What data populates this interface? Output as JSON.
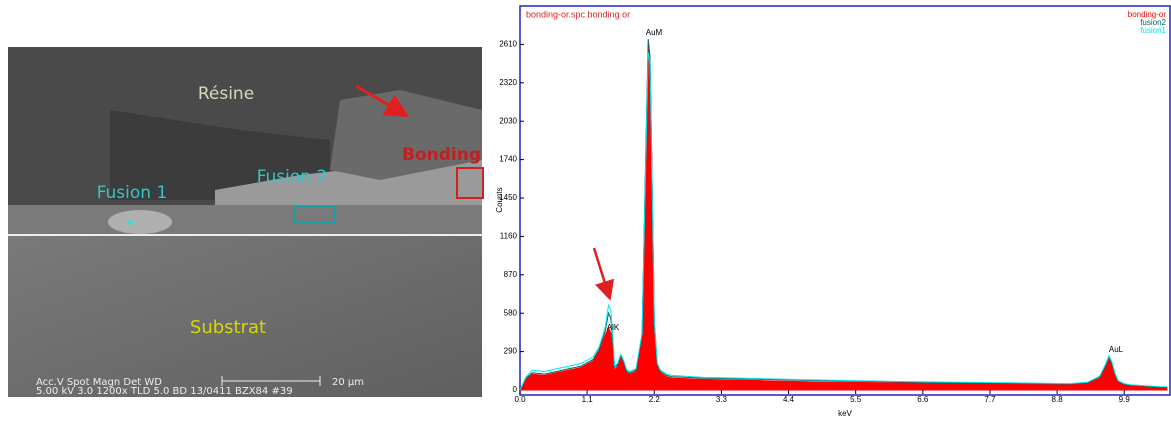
{
  "sem_image": {
    "labels": {
      "resine": "Résine",
      "fusion1": "Fusion 1",
      "fusion2": "Fusion 2",
      "bonding": "Bonding",
      "substrat": "Substrat"
    },
    "info_header": "Acc.V  Spot Magn    Det  WD",
    "scale": "20 µm",
    "info_values": "5.00 kV 3.0  1200x    TLD  5.0    BD 13/0411 BZX84 #39"
  },
  "chart_data": {
    "type": "area",
    "title": "bonding-or.spc bonding or",
    "x_label": "keV",
    "y_label": "Counts",
    "x": [
      0.0,
      0.1,
      0.2,
      0.4,
      0.6,
      0.8,
      1.0,
      1.2,
      1.3,
      1.4,
      1.45,
      1.49,
      1.52,
      1.55,
      1.6,
      1.65,
      1.7,
      1.75,
      1.8,
      1.9,
      2.0,
      2.05,
      2.1,
      2.13,
      2.16,
      2.2,
      2.25,
      2.3,
      2.4,
      2.5,
      3.0,
      4.0,
      5.0,
      6.0,
      7.0,
      8.0,
      9.0,
      9.3,
      9.5,
      9.6,
      9.65,
      9.7,
      9.75,
      9.8,
      9.9,
      10.0,
      10.5,
      10.6
    ],
    "series": [
      {
        "name": "bonding-or",
        "color": "#ff0000",
        "filled": true,
        "values": [
          0,
          80,
          120,
          110,
          130,
          150,
          170,
          220,
          300,
          420,
          470,
          430,
          300,
          150,
          180,
          250,
          200,
          130,
          120,
          140,
          400,
          1500,
          2600,
          2500,
          1700,
          500,
          180,
          130,
          100,
          90,
          80,
          70,
          60,
          55,
          50,
          45,
          40,
          50,
          90,
          180,
          230,
          190,
          110,
          60,
          40,
          35,
          20,
          20
        ]
      },
      {
        "name": "fusion2",
        "color": "#006666",
        "filled": false,
        "values": [
          0,
          90,
          130,
          120,
          140,
          160,
          180,
          230,
          310,
          450,
          580,
          540,
          360,
          170,
          190,
          260,
          210,
          140,
          130,
          150,
          420,
          1550,
          2650,
          2520,
          1720,
          520,
          190,
          140,
          110,
          100,
          90,
          80,
          70,
          62,
          56,
          50,
          45,
          55,
          100,
          190,
          250,
          200,
          120,
          65,
          45,
          38,
          22,
          22
        ]
      },
      {
        "name": "fusion1",
        "color": "#00e5ee",
        "filled": false,
        "values": [
          0,
          100,
          150,
          140,
          160,
          180,
          200,
          250,
          330,
          480,
          640,
          600,
          400,
          180,
          200,
          270,
          220,
          150,
          140,
          160,
          430,
          1500,
          2550,
          2480,
          1690,
          510,
          200,
          150,
          120,
          110,
          95,
          85,
          75,
          66,
          60,
          54,
          48,
          58,
          105,
          200,
          260,
          210,
          125,
          70,
          48,
          40,
          24,
          24
        ]
      }
    ],
    "annotations": [
      "AlK",
      "AuM",
      "AuL"
    ],
    "xlim": [
      0,
      10.65
    ],
    "ylim": [
      0,
      2900
    ],
    "xticks": [
      {
        "value": 0,
        "label": "0.0"
      },
      1.1,
      2.2,
      3.3,
      4.4,
      5.5,
      6.6,
      7.7,
      8.8,
      9.9
    ],
    "yticks": [
      0,
      290,
      580,
      870,
      1160,
      1450,
      1740,
      2030,
      2320,
      2610
    ],
    "legend": "top-right"
  }
}
